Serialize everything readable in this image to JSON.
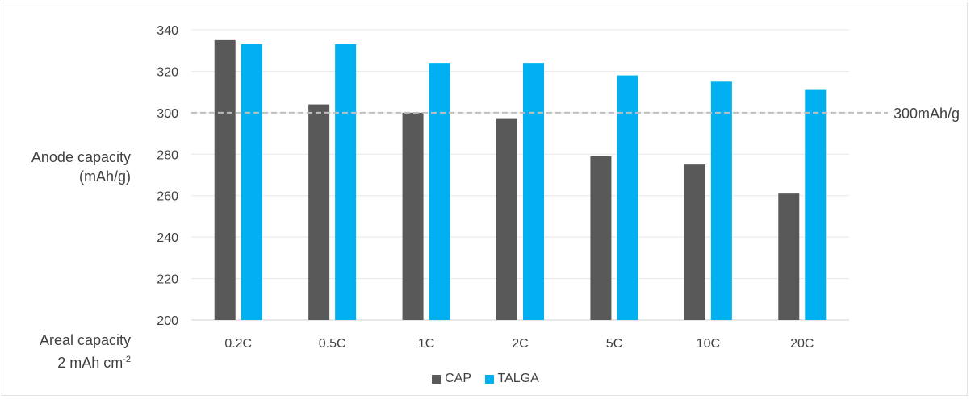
{
  "chart_data": {
    "type": "bar",
    "categories": [
      "0.2C",
      "0.5C",
      "1C",
      "2C",
      "5C",
      "10C",
      "20C"
    ],
    "series": [
      {
        "name": "CAP",
        "color": "#595959",
        "values": [
          335,
          304,
          300,
          297,
          279,
          275,
          261
        ]
      },
      {
        "name": "TALGA",
        "color": "#00b0f0",
        "values": [
          333,
          333,
          324,
          324,
          318,
          315,
          311
        ]
      }
    ],
    "ylim": [
      200,
      340
    ],
    "yticks": [
      200,
      220,
      240,
      260,
      280,
      300,
      320,
      340
    ],
    "ytick_labels": [
      "200",
      "220",
      "240",
      "260",
      "280",
      "300",
      "320",
      "340"
    ],
    "ylabel": {
      "line1": "Anode capacity",
      "line2": "(mAh/g)"
    },
    "areal_note": {
      "line1": "Areal capacity",
      "line2_base": "2 mAh cm",
      "line2_sup": "-2"
    },
    "reference_line": {
      "value": 300,
      "label": "300mAh/g",
      "color": "#bfbfbf",
      "style": "dashed"
    },
    "grid": true,
    "legend_position": "bottom"
  }
}
